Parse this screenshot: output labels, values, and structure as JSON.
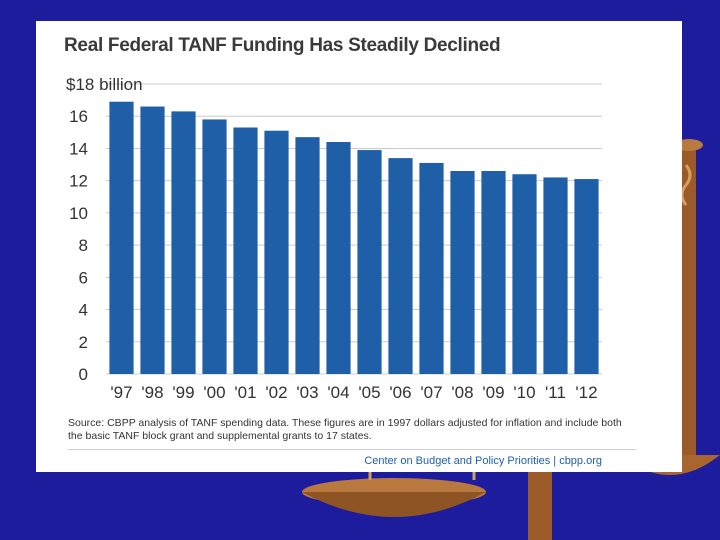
{
  "colors": {
    "background": "#1c1c9c",
    "card": "#ffffff",
    "bar": "#1f5fa8",
    "grid": "#cccccc",
    "text": "#333333",
    "credit": "#1f5fa8"
  },
  "chart_data": {
    "type": "bar",
    "title": "Real Federal TANF Funding Has Steadily Declined",
    "top_tick_label": "$18 billion",
    "y_ticks": [
      "0",
      "2",
      "4",
      "6",
      "8",
      "10",
      "12",
      "14",
      "16"
    ],
    "ylim": [
      0,
      18
    ],
    "categories": [
      "'97",
      "'98",
      "'99",
      "'00",
      "'01",
      "'02",
      "'03",
      "'04",
      "'05",
      "'06",
      "'07",
      "'08",
      "'09",
      "'10",
      "'11",
      "'12"
    ],
    "values": [
      16.9,
      16.6,
      16.3,
      15.8,
      15.3,
      15.1,
      14.7,
      14.4,
      13.9,
      13.4,
      13.1,
      12.6,
      12.6,
      12.4,
      12.2,
      12.1
    ],
    "source": "Source: CBPP analysis of TANF spending data. These figures are in 1997 dollars adjusted for inflation and include both the basic TANF block grant and supplemental grants to 17 states.",
    "credit_org": "Center on Budget and Policy Priorities",
    "credit_sep": "|",
    "credit_site": "cbpp.org"
  }
}
